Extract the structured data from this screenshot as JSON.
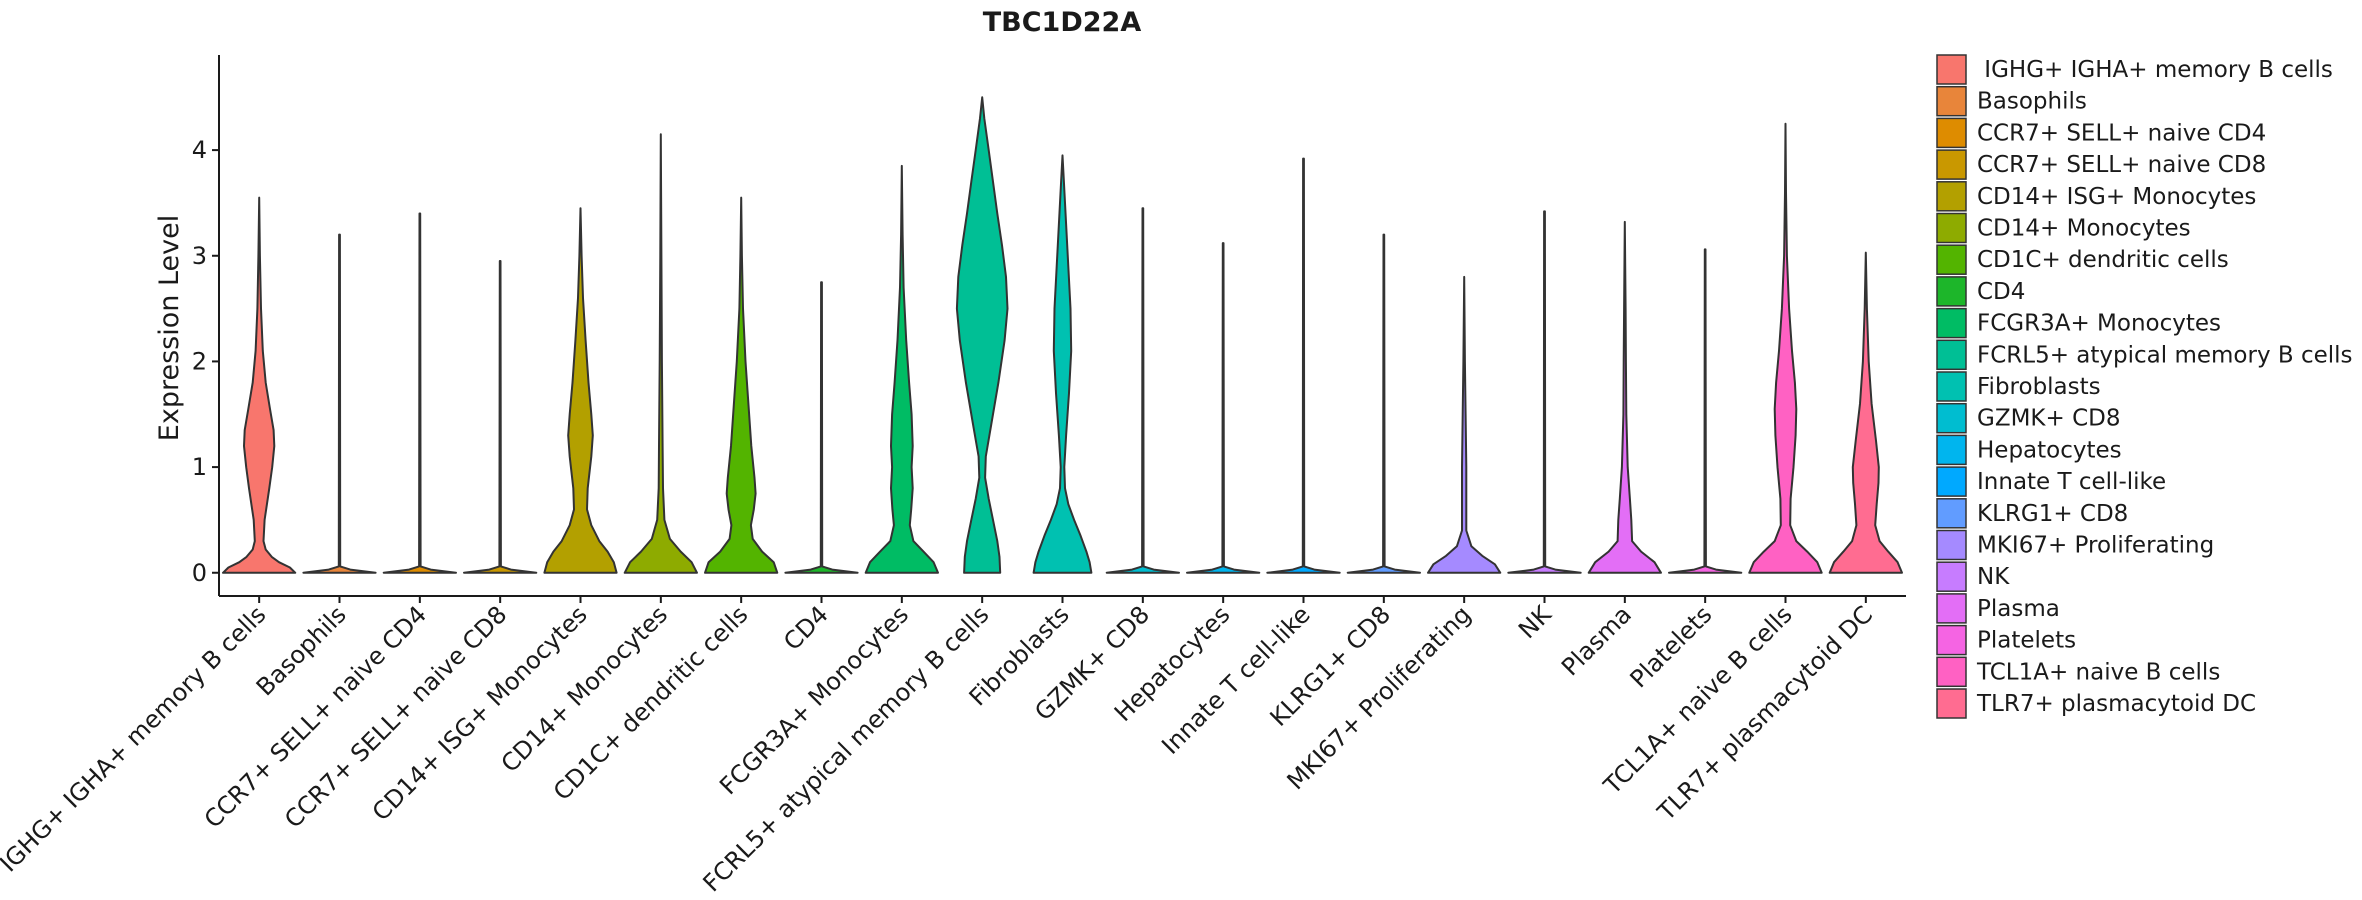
{
  "chart_data": {
    "type": "violin",
    "title": "TBC1D22A",
    "xlabel": "",
    "ylabel": "Expression Level",
    "ylim": [
      -0.22,
      4.9
    ],
    "yticks": [
      0,
      1,
      2,
      3,
      4
    ],
    "grid": false,
    "legend_position": "right",
    "categories": [
      {
        "name": " IGHG+ IGHA+ memory B cells",
        "label": "IGHG+ IGHA+ memory B cells",
        "color": "#F8766D",
        "max": 3.55,
        "profile": [
          [
            0,
            1
          ],
          [
            0.05,
            0.85
          ],
          [
            0.1,
            0.55
          ],
          [
            0.15,
            0.35
          ],
          [
            0.22,
            0.18
          ],
          [
            0.3,
            0.12
          ],
          [
            0.5,
            0.15
          ],
          [
            0.8,
            0.28
          ],
          [
            1.0,
            0.36
          ],
          [
            1.2,
            0.42
          ],
          [
            1.35,
            0.4
          ],
          [
            1.55,
            0.3
          ],
          [
            1.8,
            0.18
          ],
          [
            2.1,
            0.1
          ],
          [
            2.5,
            0.05
          ],
          [
            3.0,
            0.02
          ],
          [
            3.55,
            0
          ]
        ]
      },
      {
        "name": "Basophils",
        "label": "Basophils",
        "color": "#E8853A",
        "max": 3.2,
        "profile": [
          [
            0,
            1
          ],
          [
            0.03,
            0.3
          ],
          [
            0.06,
            0.02
          ],
          [
            3.2,
            0.01
          ]
        ]
      },
      {
        "name": "CCR7+ SELL+ naive CD4",
        "label": "CCR7+ SELL+ naive CD4",
        "color": "#DE8C00",
        "max": 3.4,
        "profile": [
          [
            0,
            1
          ],
          [
            0.03,
            0.3
          ],
          [
            0.06,
            0.02
          ],
          [
            3.4,
            0.01
          ]
        ]
      },
      {
        "name": "CCR7+ SELL+ naive CD8",
        "label": "CCR7+ SELL+ naive CD8",
        "color": "#C99800",
        "max": 2.95,
        "profile": [
          [
            0,
            1
          ],
          [
            0.03,
            0.3
          ],
          [
            0.06,
            0.02
          ],
          [
            2.95,
            0.01
          ]
        ]
      },
      {
        "name": "CD14+ ISG+ Monocytes",
        "label": "CD14+ ISG+ Monocytes",
        "color": "#B3A000",
        "max": 3.45,
        "profile": [
          [
            0,
            1
          ],
          [
            0.1,
            0.92
          ],
          [
            0.2,
            0.75
          ],
          [
            0.3,
            0.52
          ],
          [
            0.45,
            0.3
          ],
          [
            0.6,
            0.18
          ],
          [
            0.8,
            0.2
          ],
          [
            1.1,
            0.3
          ],
          [
            1.3,
            0.34
          ],
          [
            1.5,
            0.3
          ],
          [
            1.8,
            0.22
          ],
          [
            2.2,
            0.14
          ],
          [
            2.6,
            0.07
          ],
          [
            3.0,
            0.03
          ],
          [
            3.45,
            0
          ]
        ]
      },
      {
        "name": "CD14+ Monocytes",
        "label": "CD14+ Monocytes",
        "color": "#8EAB00",
        "max": 4.15,
        "profile": [
          [
            0,
            1
          ],
          [
            0.1,
            0.85
          ],
          [
            0.2,
            0.55
          ],
          [
            0.32,
            0.25
          ],
          [
            0.5,
            0.1
          ],
          [
            0.8,
            0.06
          ],
          [
            1.2,
            0.05
          ],
          [
            2.0,
            0.03
          ],
          [
            3.0,
            0.015
          ],
          [
            4.15,
            0
          ]
        ]
      },
      {
        "name": "CD1C+ dendritic cells",
        "label": "CD1C+ dendritic cells",
        "color": "#53B400",
        "max": 3.55,
        "profile": [
          [
            0,
            1
          ],
          [
            0.1,
            0.9
          ],
          [
            0.2,
            0.58
          ],
          [
            0.32,
            0.32
          ],
          [
            0.45,
            0.27
          ],
          [
            0.6,
            0.35
          ],
          [
            0.75,
            0.4
          ],
          [
            0.9,
            0.37
          ],
          [
            1.2,
            0.28
          ],
          [
            1.6,
            0.2
          ],
          [
            2.0,
            0.12
          ],
          [
            2.5,
            0.05
          ],
          [
            3.0,
            0.02
          ],
          [
            3.55,
            0
          ]
        ]
      },
      {
        "name": "CD4",
        "label": "CD4",
        "color": "#1DB62A",
        "max": 2.75,
        "profile": [
          [
            0,
            1
          ],
          [
            0.03,
            0.3
          ],
          [
            0.06,
            0.02
          ],
          [
            2.75,
            0.01
          ]
        ]
      },
      {
        "name": "FCGR3A+ Monocytes",
        "label": "FCGR3A+ Monocytes",
        "color": "#00BC64",
        "max": 3.85,
        "profile": [
          [
            0,
            1
          ],
          [
            0.1,
            0.88
          ],
          [
            0.2,
            0.6
          ],
          [
            0.3,
            0.32
          ],
          [
            0.45,
            0.22
          ],
          [
            0.6,
            0.26
          ],
          [
            0.8,
            0.3
          ],
          [
            1.0,
            0.27
          ],
          [
            1.2,
            0.3
          ],
          [
            1.5,
            0.27
          ],
          [
            1.8,
            0.2
          ],
          [
            2.2,
            0.12
          ],
          [
            2.7,
            0.05
          ],
          [
            3.2,
            0.02
          ],
          [
            3.85,
            0
          ]
        ]
      },
      {
        "name": "FCRL5+ atypical memory B cells",
        "label": "FCRL5+ atypical memory B cells",
        "color": "#00BF95",
        "max": 4.5,
        "profile": [
          [
            0,
            0.5
          ],
          [
            0.15,
            0.48
          ],
          [
            0.3,
            0.42
          ],
          [
            0.5,
            0.3
          ],
          [
            0.7,
            0.18
          ],
          [
            0.9,
            0.08
          ],
          [
            1.1,
            0.1
          ],
          [
            1.4,
            0.25
          ],
          [
            1.8,
            0.45
          ],
          [
            2.2,
            0.62
          ],
          [
            2.5,
            0.7
          ],
          [
            2.8,
            0.66
          ],
          [
            3.1,
            0.55
          ],
          [
            3.4,
            0.42
          ],
          [
            3.7,
            0.3
          ],
          [
            4.0,
            0.18
          ],
          [
            4.3,
            0.06
          ],
          [
            4.5,
            0
          ]
        ]
      },
      {
        "name": "Fibroblasts",
        "label": "Fibroblasts",
        "color": "#00C1B1",
        "max": 3.95,
        "profile": [
          [
            0,
            0.8
          ],
          [
            0.1,
            0.75
          ],
          [
            0.2,
            0.66
          ],
          [
            0.35,
            0.5
          ],
          [
            0.5,
            0.32
          ],
          [
            0.65,
            0.16
          ],
          [
            0.8,
            0.07
          ],
          [
            1.0,
            0.05
          ],
          [
            1.3,
            0.1
          ],
          [
            1.7,
            0.18
          ],
          [
            2.1,
            0.24
          ],
          [
            2.5,
            0.22
          ],
          [
            2.9,
            0.16
          ],
          [
            3.3,
            0.1
          ],
          [
            3.7,
            0.04
          ],
          [
            3.95,
            0
          ]
        ]
      },
      {
        "name": "GZMK+ CD8",
        "label": "GZMK+ CD8",
        "color": "#00BDD0",
        "max": 3.45,
        "profile": [
          [
            0,
            1
          ],
          [
            0.03,
            0.3
          ],
          [
            0.06,
            0.02
          ],
          [
            3.45,
            0.01
          ]
        ]
      },
      {
        "name": "Hepatocytes",
        "label": "Hepatocytes",
        "color": "#00B5EE",
        "max": 3.12,
        "profile": [
          [
            0,
            1
          ],
          [
            0.03,
            0.3
          ],
          [
            0.06,
            0.02
          ],
          [
            3.12,
            0.01
          ]
        ]
      },
      {
        "name": "Innate T cell-like",
        "label": "Innate T cell-like",
        "color": "#00A9FF",
        "max": 3.92,
        "profile": [
          [
            0,
            1
          ],
          [
            0.03,
            0.3
          ],
          [
            0.06,
            0.02
          ],
          [
            3.92,
            0.01
          ]
        ]
      },
      {
        "name": "KLRG1+ CD8",
        "label": "KLRG1+ CD8",
        "color": "#619CFF",
        "max": 3.2,
        "profile": [
          [
            0,
            1
          ],
          [
            0.03,
            0.3
          ],
          [
            0.06,
            0.02
          ],
          [
            3.2,
            0.01
          ]
        ]
      },
      {
        "name": "MKI67+ Proliferating",
        "label": "MKI67+ Proliferating",
        "color": "#A58AFF",
        "max": 2.8,
        "profile": [
          [
            0,
            1
          ],
          [
            0.08,
            0.85
          ],
          [
            0.16,
            0.5
          ],
          [
            0.25,
            0.2
          ],
          [
            0.4,
            0.06
          ],
          [
            0.7,
            0.06
          ],
          [
            1.0,
            0.06
          ],
          [
            1.5,
            0.04
          ],
          [
            2.0,
            0.02
          ],
          [
            2.8,
            0
          ]
        ]
      },
      {
        "name": "NK",
        "label": "NK",
        "color": "#C77CFF",
        "max": 3.42,
        "profile": [
          [
            0,
            1
          ],
          [
            0.03,
            0.3
          ],
          [
            0.06,
            0.02
          ],
          [
            3.42,
            0.01
          ]
        ]
      },
      {
        "name": "Plasma",
        "label": "Plasma",
        "color": "#E36EF6",
        "max": 3.32,
        "profile": [
          [
            0,
            1
          ],
          [
            0.1,
            0.82
          ],
          [
            0.2,
            0.45
          ],
          [
            0.3,
            0.2
          ],
          [
            0.5,
            0.18
          ],
          [
            0.7,
            0.14
          ],
          [
            1.0,
            0.08
          ],
          [
            1.5,
            0.04
          ],
          [
            2.0,
            0.03
          ],
          [
            2.5,
            0.02
          ],
          [
            3.32,
            0
          ]
        ]
      },
      {
        "name": "Platelets",
        "label": "Platelets",
        "color": "#F564E3",
        "max": 3.06,
        "profile": [
          [
            0,
            1
          ],
          [
            0.03,
            0.3
          ],
          [
            0.06,
            0.02
          ],
          [
            3.06,
            0.01
          ]
        ]
      },
      {
        "name": "TCL1A+ naive B cells",
        "label": "TCL1A+ naive B cells",
        "color": "#FF61C3",
        "max": 4.25,
        "profile": [
          [
            0,
            1
          ],
          [
            0.1,
            0.88
          ],
          [
            0.2,
            0.6
          ],
          [
            0.3,
            0.3
          ],
          [
            0.45,
            0.13
          ],
          [
            0.7,
            0.14
          ],
          [
            1.0,
            0.22
          ],
          [
            1.3,
            0.28
          ],
          [
            1.55,
            0.3
          ],
          [
            1.8,
            0.26
          ],
          [
            2.1,
            0.18
          ],
          [
            2.5,
            0.1
          ],
          [
            3.0,
            0.04
          ],
          [
            3.6,
            0.015
          ],
          [
            4.25,
            0
          ]
        ]
      },
      {
        "name": "TLR7+ plasmacytoid DC",
        "label": "TLR7+ plasmacytoid DC",
        "color": "#FF6C91",
        "max": 3.03,
        "profile": [
          [
            0,
            1
          ],
          [
            0.1,
            0.88
          ],
          [
            0.2,
            0.62
          ],
          [
            0.3,
            0.38
          ],
          [
            0.45,
            0.26
          ],
          [
            0.65,
            0.3
          ],
          [
            0.85,
            0.35
          ],
          [
            1.0,
            0.36
          ],
          [
            1.25,
            0.28
          ],
          [
            1.6,
            0.16
          ],
          [
            2.0,
            0.08
          ],
          [
            2.5,
            0.03
          ],
          [
            3.03,
            0
          ]
        ]
      }
    ]
  }
}
